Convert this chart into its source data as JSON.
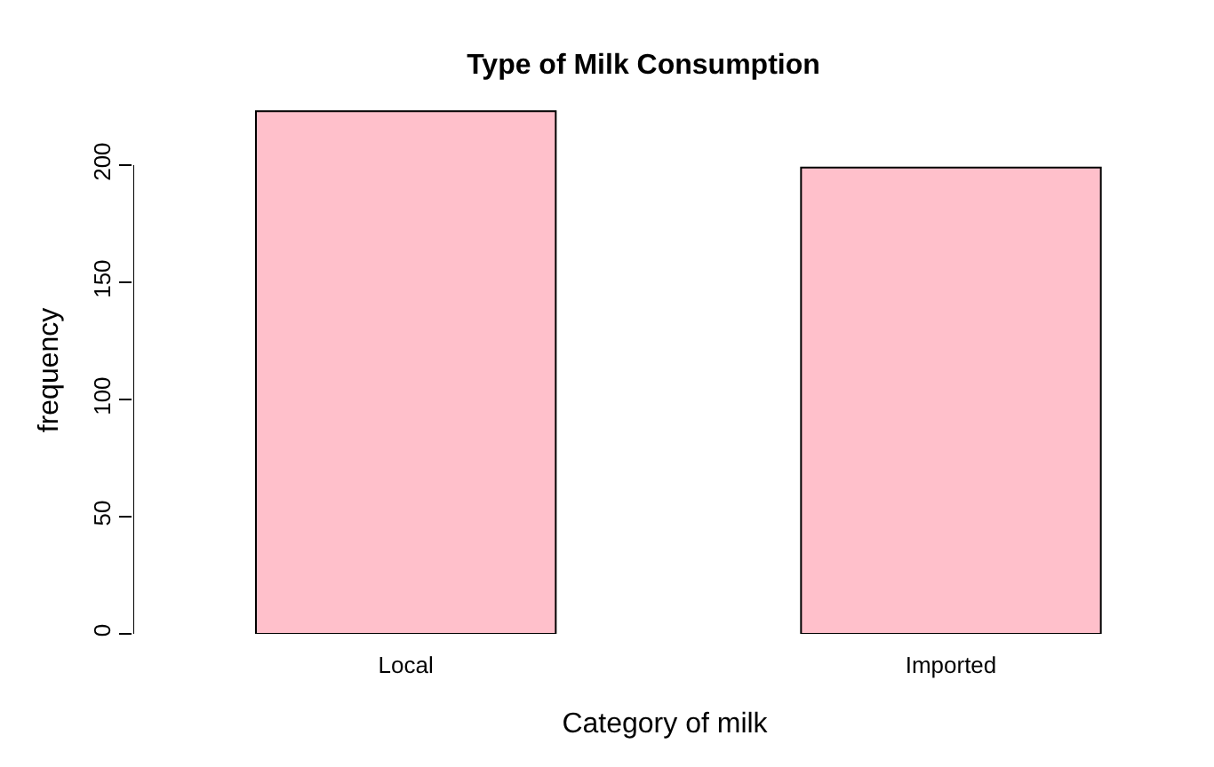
{
  "chart_data": {
    "type": "bar",
    "title": "Type of Milk Consumption",
    "xlabel": "Category of milk",
    "ylabel": "frequency",
    "categories": [
      "Local",
      "Imported"
    ],
    "values": [
      223,
      199
    ],
    "color": "#ffc0cb",
    "ylim": [
      0,
      225
    ],
    "yticks": [
      0,
      50,
      100,
      150,
      200
    ],
    "grid": false,
    "legend": false
  }
}
